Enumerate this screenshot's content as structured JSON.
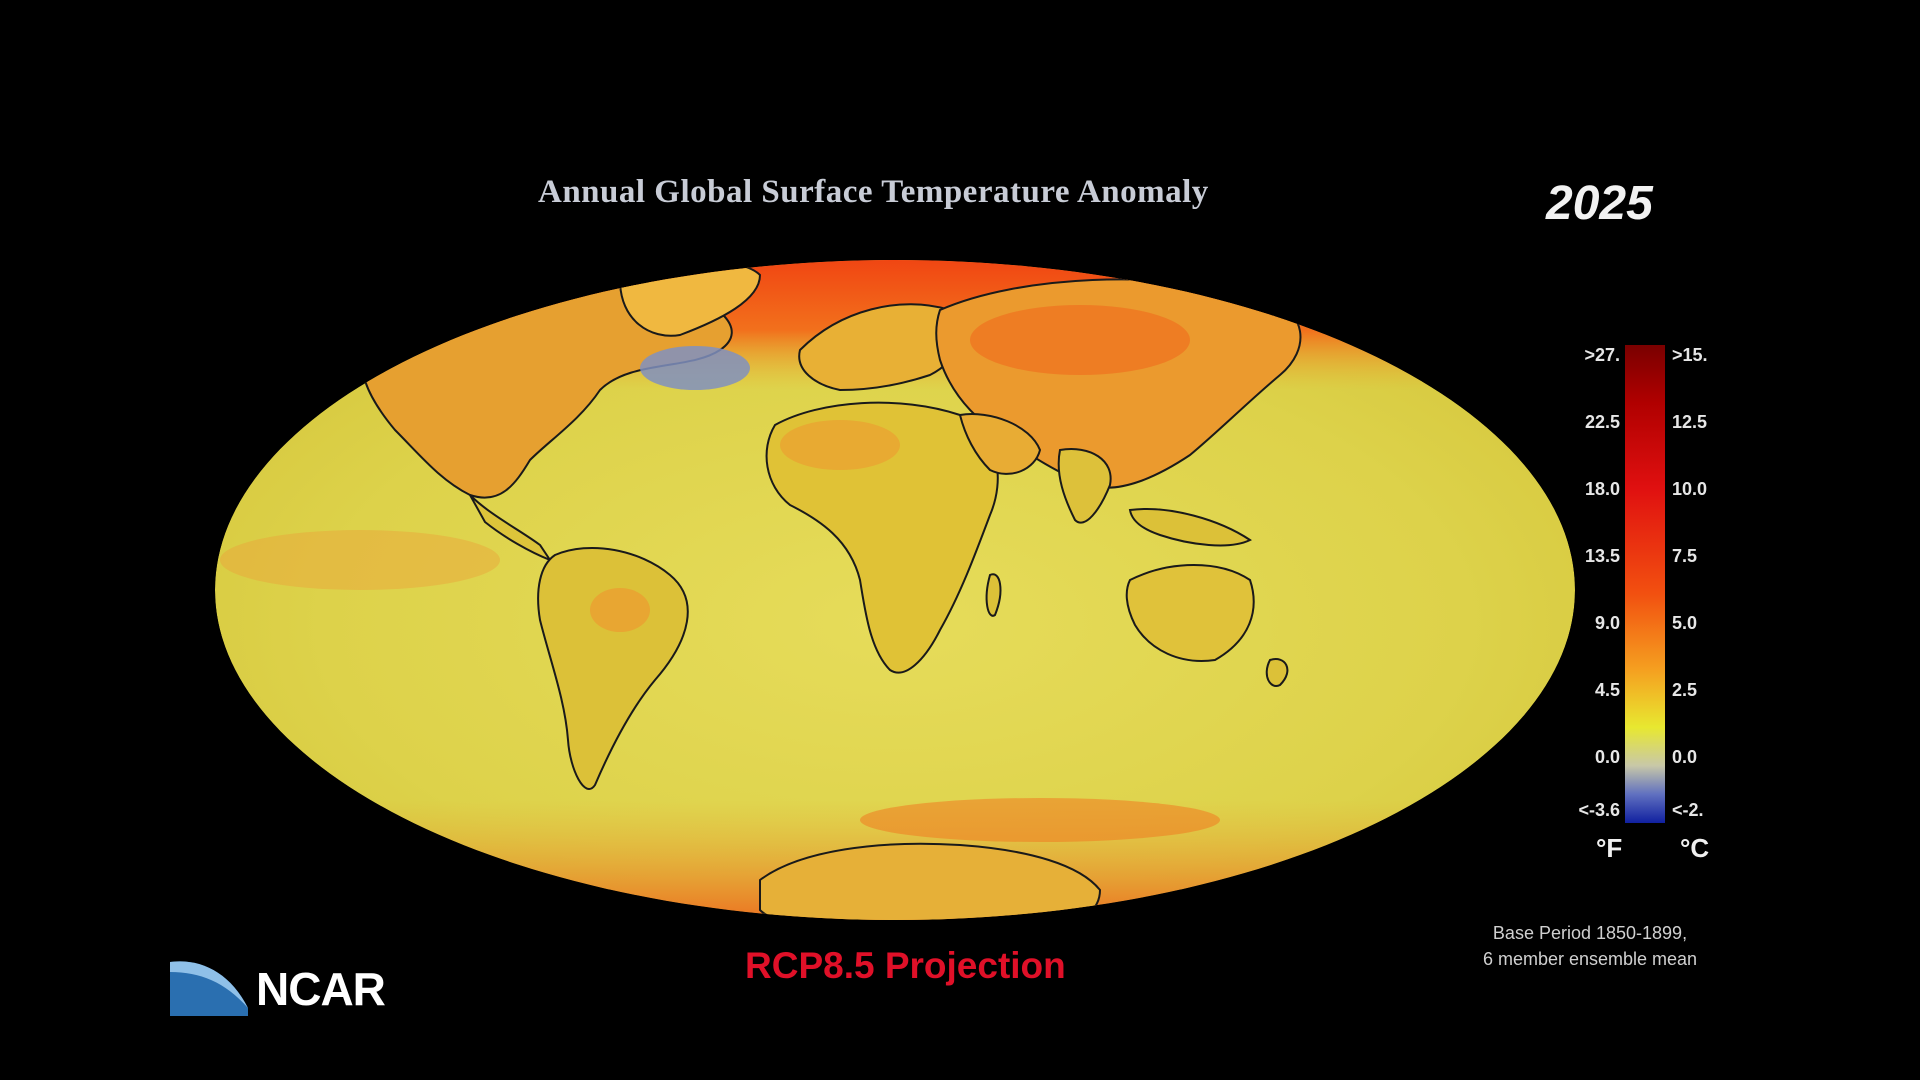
{
  "title": "Annual Global Surface Temperature Anomaly",
  "year": "2025",
  "scenario": "RCP8.5  Projection",
  "base_note": {
    "line1": "Base Period 1850-1899,",
    "line2": "6 member ensemble mean"
  },
  "logo": {
    "text": "NCAR"
  },
  "legend": {
    "fahrenheit_ticks": [
      ">27.",
      "22.5",
      "18.0",
      "13.5",
      "9.0",
      "4.5",
      "0.0",
      "<-3.6"
    ],
    "celsius_ticks": [
      ">15.",
      "12.5",
      "10.0",
      "7.5",
      "5.0",
      "2.5",
      "0.0",
      "<-2."
    ],
    "unit_f": "°F",
    "unit_c": "°C",
    "colors": {
      "max": "#7a0000",
      "high": "#e01010",
      "mid": "#f5a020",
      "low": "#e8e830",
      "zero": "#c8c8a8",
      "min": "#1020a0"
    }
  },
  "map": {
    "projection": "Mollweide",
    "ocean_color": "#e0d84a",
    "land_color": "#dccf35",
    "arctic_color": "#ee4a18"
  }
}
